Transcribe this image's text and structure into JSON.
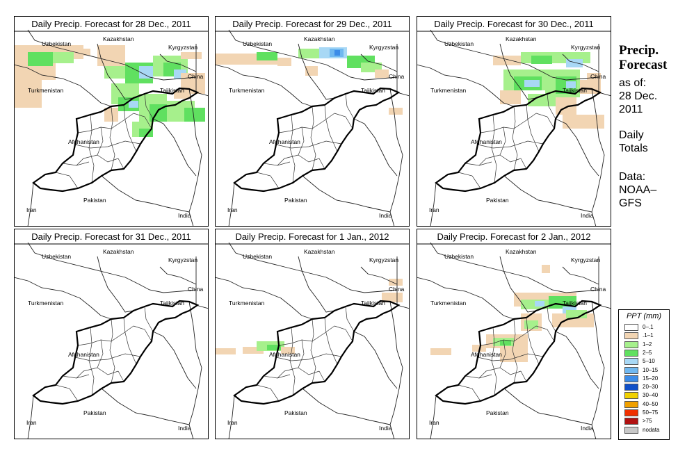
{
  "panels": [
    {
      "title": "Daily Precip. Forecast for  28 Dec., 2011"
    },
    {
      "title": "Daily Precip. Forecast for  29 Dec., 2011"
    },
    {
      "title": "Daily Precip. Forecast for  30 Dec., 2011"
    },
    {
      "title": "Daily Precip. Forecast for  31 Dec., 2011"
    },
    {
      "title": "Daily Precip. Forecast for  1 Jan., 2012"
    },
    {
      "title": "Daily Precip. Forecast for  2 Jan., 2012"
    }
  ],
  "map_labels": {
    "uzbekistan": "Uzbekistan",
    "kazakhstan": "Kazakhstan",
    "kyrgyzstan": "Kyrgyzstan",
    "china": "China",
    "turkmenistan": "Turkmenistan",
    "tajikistan": "Tajikistan",
    "afghanistan": "Afghanistan",
    "pakistan": "Pakistan",
    "iran": "Iran",
    "india": "India"
  },
  "side": {
    "title_line1": "Precip.",
    "title_line2": "Forecast",
    "asof_line1": "as of:",
    "asof_line2": "28 Dec.",
    "asof_line3": "2011",
    "totals_line1": "Daily",
    "totals_line2": "Totals",
    "data_line1": "Data:",
    "data_line2": "NOAA–",
    "data_line3": "GFS"
  },
  "legend": {
    "title": "PPT (mm)",
    "items": [
      {
        "label": "0–.1",
        "color": "#ffffff"
      },
      {
        "label": ".1–1",
        "color": "#f2d5b3"
      },
      {
        "label": "1–2",
        "color": "#a6f08c"
      },
      {
        "label": "2–5",
        "color": "#60e060"
      },
      {
        "label": "5–10",
        "color": "#a8d8f5"
      },
      {
        "label": "10–15",
        "color": "#70b8f0"
      },
      {
        "label": "15–20",
        "color": "#3c8ce8"
      },
      {
        "label": "20–30",
        "color": "#1050c8"
      },
      {
        "label": "30–40",
        "color": "#f0d000"
      },
      {
        "label": "40–50",
        "color": "#f0a000"
      },
      {
        "label": "50–75",
        "color": "#f03000"
      },
      {
        "label": ">75",
        "color": "#b01010"
      },
      {
        "label": "nodata",
        "color": "#c8c8c8"
      }
    ]
  }
}
